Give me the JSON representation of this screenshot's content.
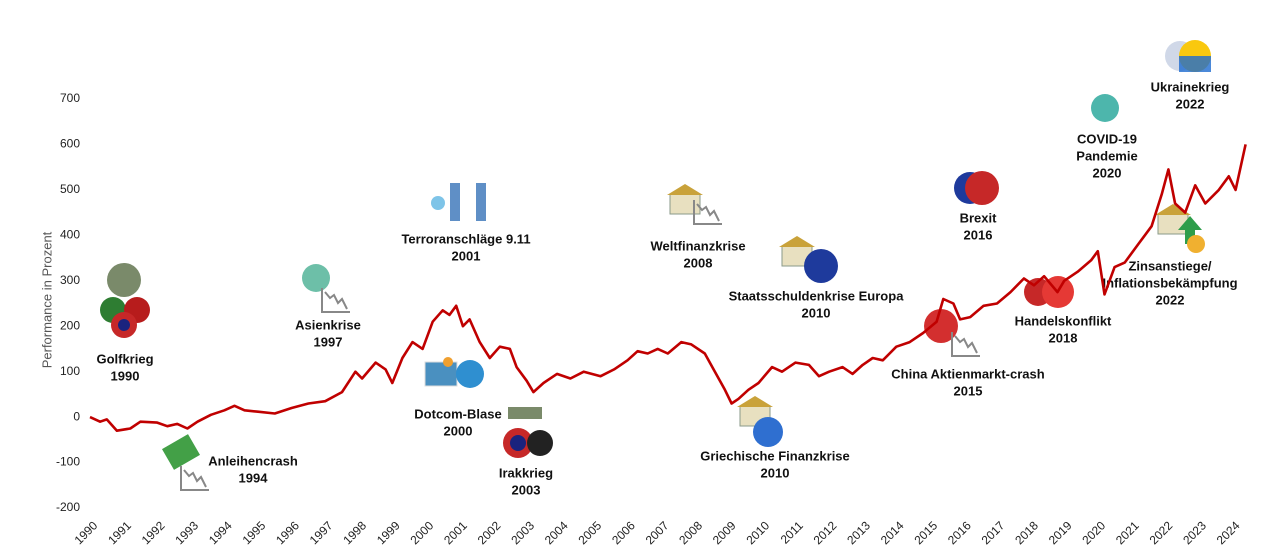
{
  "chart_data": {
    "type": "line",
    "y_label": "Performance in Prozent",
    "xlim": [
      1990,
      2024.5
    ],
    "xticks": [
      1990,
      1991,
      1992,
      1993,
      1994,
      1995,
      1996,
      1997,
      1998,
      1999,
      2000,
      2001,
      2002,
      2003,
      2004,
      2005,
      2006,
      2007,
      2008,
      2009,
      2010,
      2011,
      2012,
      2013,
      2014,
      2015,
      2016,
      2017,
      2018,
      2019,
      2020,
      2021,
      2022,
      2023,
      2024
    ],
    "ylim": [
      -200,
      700
    ],
    "yticks": [
      -200,
      -100,
      0,
      100,
      200,
      300,
      400,
      500,
      600,
      700
    ],
    "grid": false,
    "color": "#c00000",
    "x": [
      1990.0,
      1990.3,
      1990.5,
      1990.8,
      1991.2,
      1991.5,
      1992.0,
      1992.3,
      1992.6,
      1992.9,
      1993.2,
      1993.6,
      1994.0,
      1994.3,
      1994.6,
      1995.0,
      1995.5,
      1996.0,
      1996.5,
      1997.0,
      1997.5,
      1997.9,
      1998.1,
      1998.5,
      1998.8,
      1999.0,
      1999.3,
      1999.6,
      1999.9,
      2000.2,
      2000.5,
      2000.7,
      2000.9,
      2001.1,
      2001.3,
      2001.6,
      2001.9,
      2002.2,
      2002.5,
      2002.7,
      2003.0,
      2003.2,
      2003.5,
      2003.9,
      2004.3,
      2004.7,
      2005.2,
      2005.6,
      2006.0,
      2006.3,
      2006.6,
      2006.9,
      2007.2,
      2007.6,
      2007.9,
      2008.3,
      2008.6,
      2008.9,
      2009.1,
      2009.3,
      2009.6,
      2009.9,
      2010.3,
      2010.6,
      2011.0,
      2011.4,
      2011.7,
      2012.0,
      2012.4,
      2012.7,
      2013.0,
      2013.3,
      2013.6,
      2014.0,
      2014.4,
      2014.8,
      2015.2,
      2015.4,
      2015.7,
      2015.9,
      2016.2,
      2016.6,
      2017.0,
      2017.4,
      2017.8,
      2018.1,
      2018.4,
      2018.8,
      2019.0,
      2019.4,
      2019.8,
      2020.0,
      2020.2,
      2020.5,
      2020.8,
      2021.2,
      2021.6,
      2021.9,
      2022.1,
      2022.3,
      2022.6,
      2022.9,
      2023.2,
      2023.6,
      2023.9,
      2024.1,
      2024.4
    ],
    "values": [
      0,
      -10,
      -5,
      -30,
      -25,
      -10,
      -12,
      -20,
      -15,
      -25,
      -10,
      5,
      15,
      25,
      15,
      12,
      8,
      20,
      30,
      35,
      55,
      100,
      85,
      120,
      105,
      75,
      130,
      165,
      150,
      210,
      235,
      225,
      245,
      200,
      215,
      165,
      130,
      155,
      150,
      110,
      80,
      55,
      75,
      95,
      85,
      100,
      90,
      105,
      125,
      145,
      140,
      150,
      140,
      165,
      160,
      140,
      100,
      60,
      30,
      40,
      60,
      75,
      110,
      100,
      120,
      115,
      90,
      100,
      110,
      95,
      115,
      130,
      125,
      155,
      165,
      185,
      210,
      260,
      250,
      215,
      220,
      245,
      250,
      275,
      305,
      290,
      310,
      275,
      300,
      320,
      345,
      365,
      270,
      330,
      340,
      380,
      420,
      490,
      545,
      470,
      450,
      510,
      470,
      500,
      530,
      500,
      600
    ],
    "annotations": [
      {
        "lines": [
          "Golfkrieg",
          "1990"
        ]
      },
      {
        "lines": [
          "Anleihencrash",
          "1994"
        ]
      },
      {
        "lines": [
          "Asienkrise",
          "1997"
        ]
      },
      {
        "lines": [
          "Terroranschläge 9.11",
          "2001"
        ]
      },
      {
        "lines": [
          "Dotcom-Blase",
          "2000"
        ]
      },
      {
        "lines": [
          "Irakkrieg",
          "2003"
        ]
      },
      {
        "lines": [
          "Weltfinanzkrise",
          "2008"
        ]
      },
      {
        "lines": [
          "Griechische Finanzkrise",
          "2010"
        ]
      },
      {
        "lines": [
          "Staatsschuldenkrise Europa",
          "2010"
        ]
      },
      {
        "lines": [
          "China Aktienmarkt-crash",
          "2015"
        ]
      },
      {
        "lines": [
          "Brexit",
          "2016"
        ]
      },
      {
        "lines": [
          "Handelskonflikt",
          "2018"
        ]
      },
      {
        "lines": [
          "COVID-19",
          "Pandemie",
          "2020"
        ]
      },
      {
        "lines": [
          "Ukrainekrieg",
          "2022"
        ]
      },
      {
        "lines": [
          "Zinsanstiege/",
          "Inflationsbekämpfung",
          "2022"
        ]
      }
    ]
  }
}
